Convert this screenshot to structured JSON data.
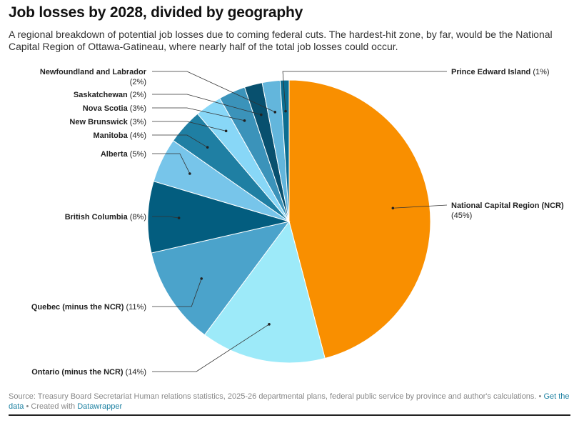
{
  "header": {
    "title": "Job losses by 2028, divided by geography",
    "subtitle": "A regional breakdown of potential job losses due to coming federal cuts. The hardest-hit zone, by far, would be the National Capital Region of Ottawa-Gatineau, where nearly half of the total job losses could occur."
  },
  "chart_data": {
    "type": "pie",
    "title": "Job losses by 2028, divided by geography",
    "unit": "%",
    "slices": [
      {
        "name": "National Capital Region (NCR)",
        "value": 45,
        "label": "(45%)",
        "color": "#f98f00"
      },
      {
        "name": "Ontario (minus the NCR)",
        "value": 14,
        "label": "(14%)",
        "color": "#9deaf9"
      },
      {
        "name": "Quebec (minus the NCR)",
        "value": 11,
        "label": "(11%)",
        "color": "#4ba3cb"
      },
      {
        "name": "British Columbia",
        "value": 8,
        "label": "(8%)",
        "color": "#035d7f"
      },
      {
        "name": "Alberta",
        "value": 5,
        "label": "(5%)",
        "color": "#77c5ea"
      },
      {
        "name": "Manitoba",
        "value": 4,
        "label": "(4%)",
        "color": "#1f7fa3"
      },
      {
        "name": "New Brunswick",
        "value": 3,
        "label": "(3%)",
        "color": "#88d7f7"
      },
      {
        "name": "Nova Scotia",
        "value": 3,
        "label": "(3%)",
        "color": "#3b93ba"
      },
      {
        "name": "Saskatchewan",
        "value": 2,
        "label": "(2%)",
        "color": "#08506e"
      },
      {
        "name": "Newfoundland and Labrador",
        "value": 2,
        "label": "(2%)",
        "color": "#63b6dc"
      },
      {
        "name": "Prince Edward Island",
        "value": 1,
        "label": "(1%)",
        "color": "#0c6e91"
      }
    ]
  },
  "footer": {
    "source": "Source: Treasury Board Secretariat Human relations statistics, 2025-26 departmental plans, federal public service by province and author's calculations.",
    "sep1": " • ",
    "get_data": "Get the data",
    "sep2": " • Created with ",
    "created_with": "Datawrapper"
  }
}
